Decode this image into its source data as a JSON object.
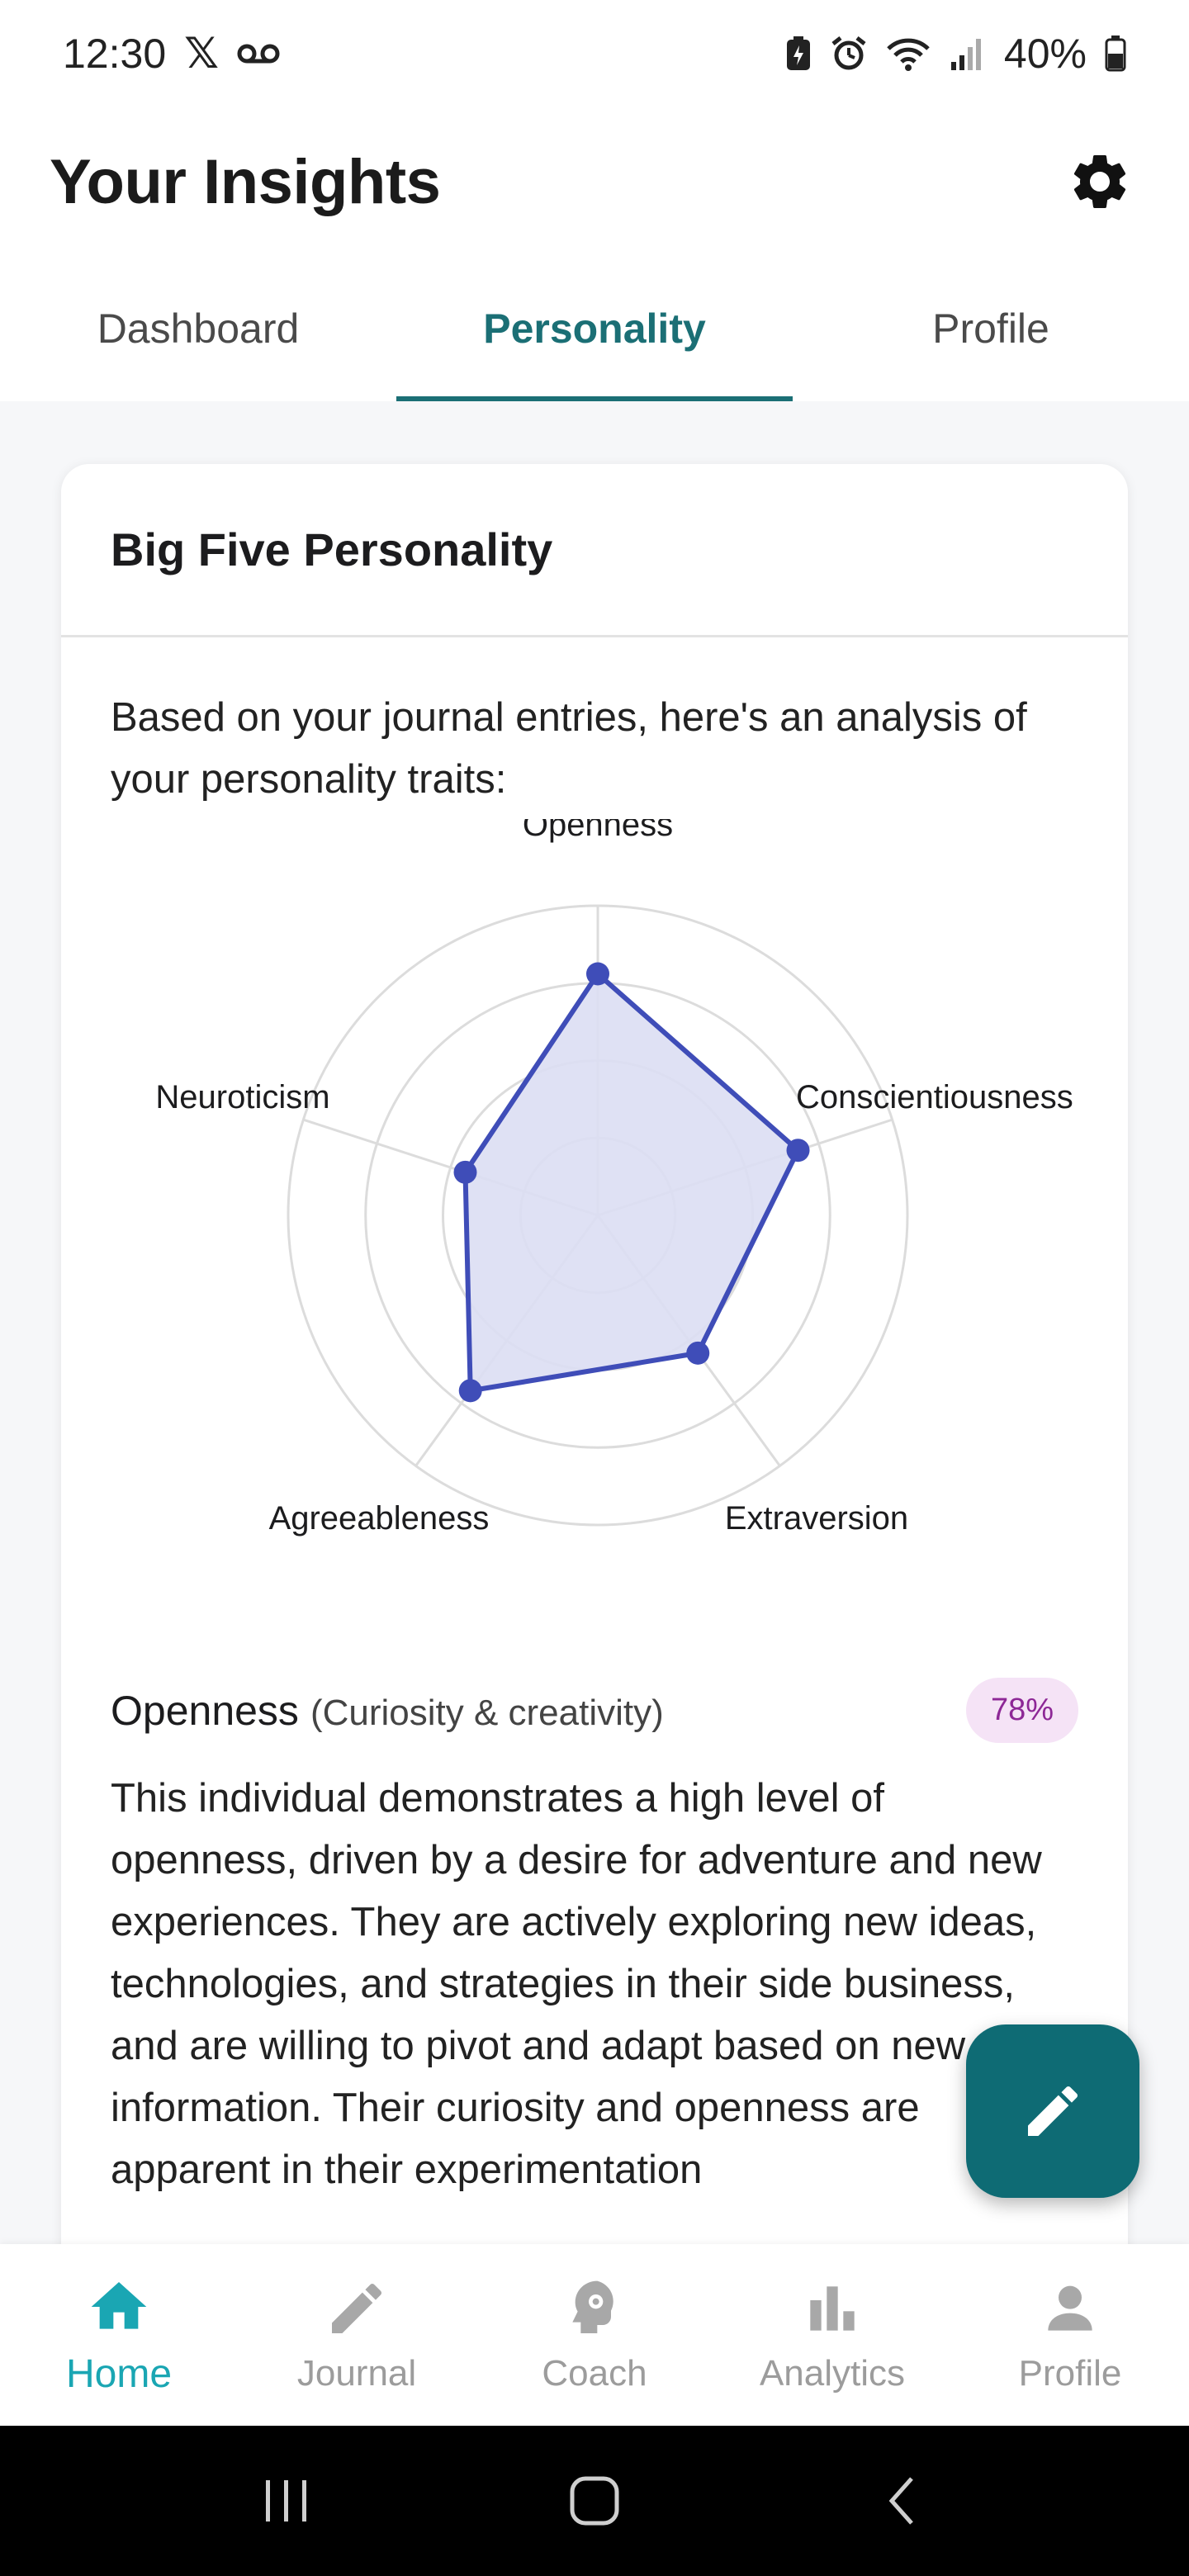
{
  "status_bar": {
    "time": "12:30",
    "battery": "40%"
  },
  "header": {
    "title": "Your Insights"
  },
  "tabs": [
    {
      "label": "Dashboard"
    },
    {
      "label": "Personality"
    },
    {
      "label": "Profile"
    }
  ],
  "card": {
    "title": "Big Five Personality",
    "intro": "Based on your journal entries, here's an analysis of your personality traits:"
  },
  "chart_data": {
    "type": "radar",
    "axes": [
      "Openness",
      "Conscientiousness",
      "Extraversion",
      "Agreeableness",
      "Neuroticism"
    ],
    "values": [
      78,
      68,
      55,
      70,
      45
    ],
    "max": 100,
    "rings": 4,
    "colors": {
      "line": "#3f4db8",
      "fill": "#dcdef3",
      "grid": "#dcdcdc"
    }
  },
  "trait": {
    "name": "Openness",
    "subtitle": "(Curiosity & creativity)",
    "score": "78%",
    "description": "This individual demonstrates a high level of openness, driven by a desire for adventure and new experiences. They are actively exploring new ideas, technologies, and strategies in their side business, and are willing to pivot and adapt based on new information. Their curiosity and openness are apparent in their experimentation"
  },
  "bottom_nav": [
    {
      "label": "Home",
      "icon": "home-icon"
    },
    {
      "label": "Journal",
      "icon": "pencil-icon"
    },
    {
      "label": "Coach",
      "icon": "coach-head-icon"
    },
    {
      "label": "Analytics",
      "icon": "bar-chart-icon"
    },
    {
      "label": "Profile",
      "icon": "person-icon"
    }
  ]
}
